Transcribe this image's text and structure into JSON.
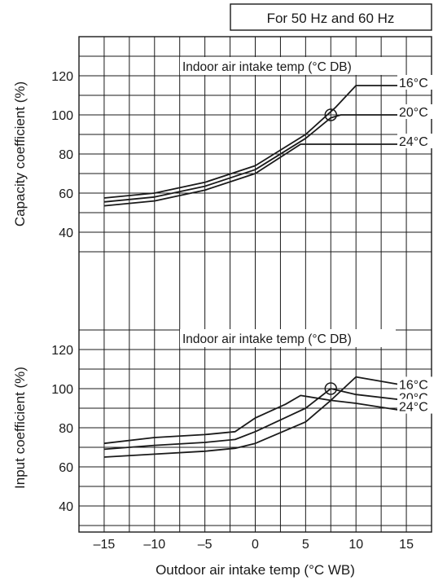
{
  "header_box": "For 50 Hz and 60 Hz",
  "chart_data": [
    {
      "type": "line",
      "name": "capacity",
      "ylabel": "Capacity coefficient (%)",
      "xlim": [
        -17.5,
        17.5
      ],
      "ylim": [
        20,
        140
      ],
      "yticks": [
        40,
        60,
        80,
        100,
        120
      ],
      "annotation": "Indoor air intake temp (°C DB)",
      "rated_point": {
        "x": 7.5,
        "y": 100
      },
      "series": [
        {
          "name": "16°C",
          "x": [
            -15,
            -10,
            -5,
            0,
            5,
            8,
            10,
            15
          ],
          "y": [
            57.5,
            60,
            65.5,
            74,
            90,
            104,
            115,
            115
          ]
        },
        {
          "name": "20°C",
          "x": [
            -15,
            -10,
            -5,
            0,
            5,
            7.5,
            8.5,
            15
          ],
          "y": [
            55.5,
            58,
            63.5,
            72,
            88,
            98.5,
            100,
            100
          ]
        },
        {
          "name": "24°C",
          "x": [
            -15,
            -10,
            -5,
            0,
            4.5,
            15
          ],
          "y": [
            53.5,
            56,
            61.5,
            70,
            85,
            85
          ]
        }
      ]
    },
    {
      "type": "line",
      "name": "input",
      "ylabel": "Input coefficient (%)",
      "xlabel": "Outdoor air intake temp (°C WB)",
      "xlim": [
        -17.5,
        17.5
      ],
      "ylim": [
        30,
        130
      ],
      "yticks": [
        40,
        60,
        80,
        100,
        120
      ],
      "xticks": [
        -15,
        -10,
        -5,
        0,
        5,
        10,
        15
      ],
      "xtick_labels": [
        "–15",
        "–10",
        "–5",
        "0",
        "5",
        "10",
        "15"
      ],
      "annotation": "Indoor air intake temp (°C DB)",
      "rated_point": {
        "x": 7.5,
        "y": 100
      },
      "series": [
        {
          "name": "16°C",
          "x": [
            -15,
            -10,
            -5,
            -2,
            0,
            5,
            7.5,
            10,
            15
          ],
          "y": [
            65,
            66.5,
            68,
            69.5,
            72,
            83,
            94,
            106,
            101.5
          ]
        },
        {
          "name": "20°C",
          "x": [
            -15,
            -10,
            -5,
            -2,
            0,
            5,
            7.5,
            10,
            15
          ],
          "y": [
            69,
            71,
            72.5,
            74,
            78,
            90,
            100,
            97,
            94
          ]
        },
        {
          "name": "24°C",
          "x": [
            -15,
            -10,
            -5,
            -2,
            0,
            3,
            4.5,
            7.5,
            10,
            15
          ],
          "y": [
            72,
            75,
            76.5,
            78,
            85,
            92,
            96.5,
            94,
            92.5,
            88.5
          ]
        }
      ]
    }
  ]
}
